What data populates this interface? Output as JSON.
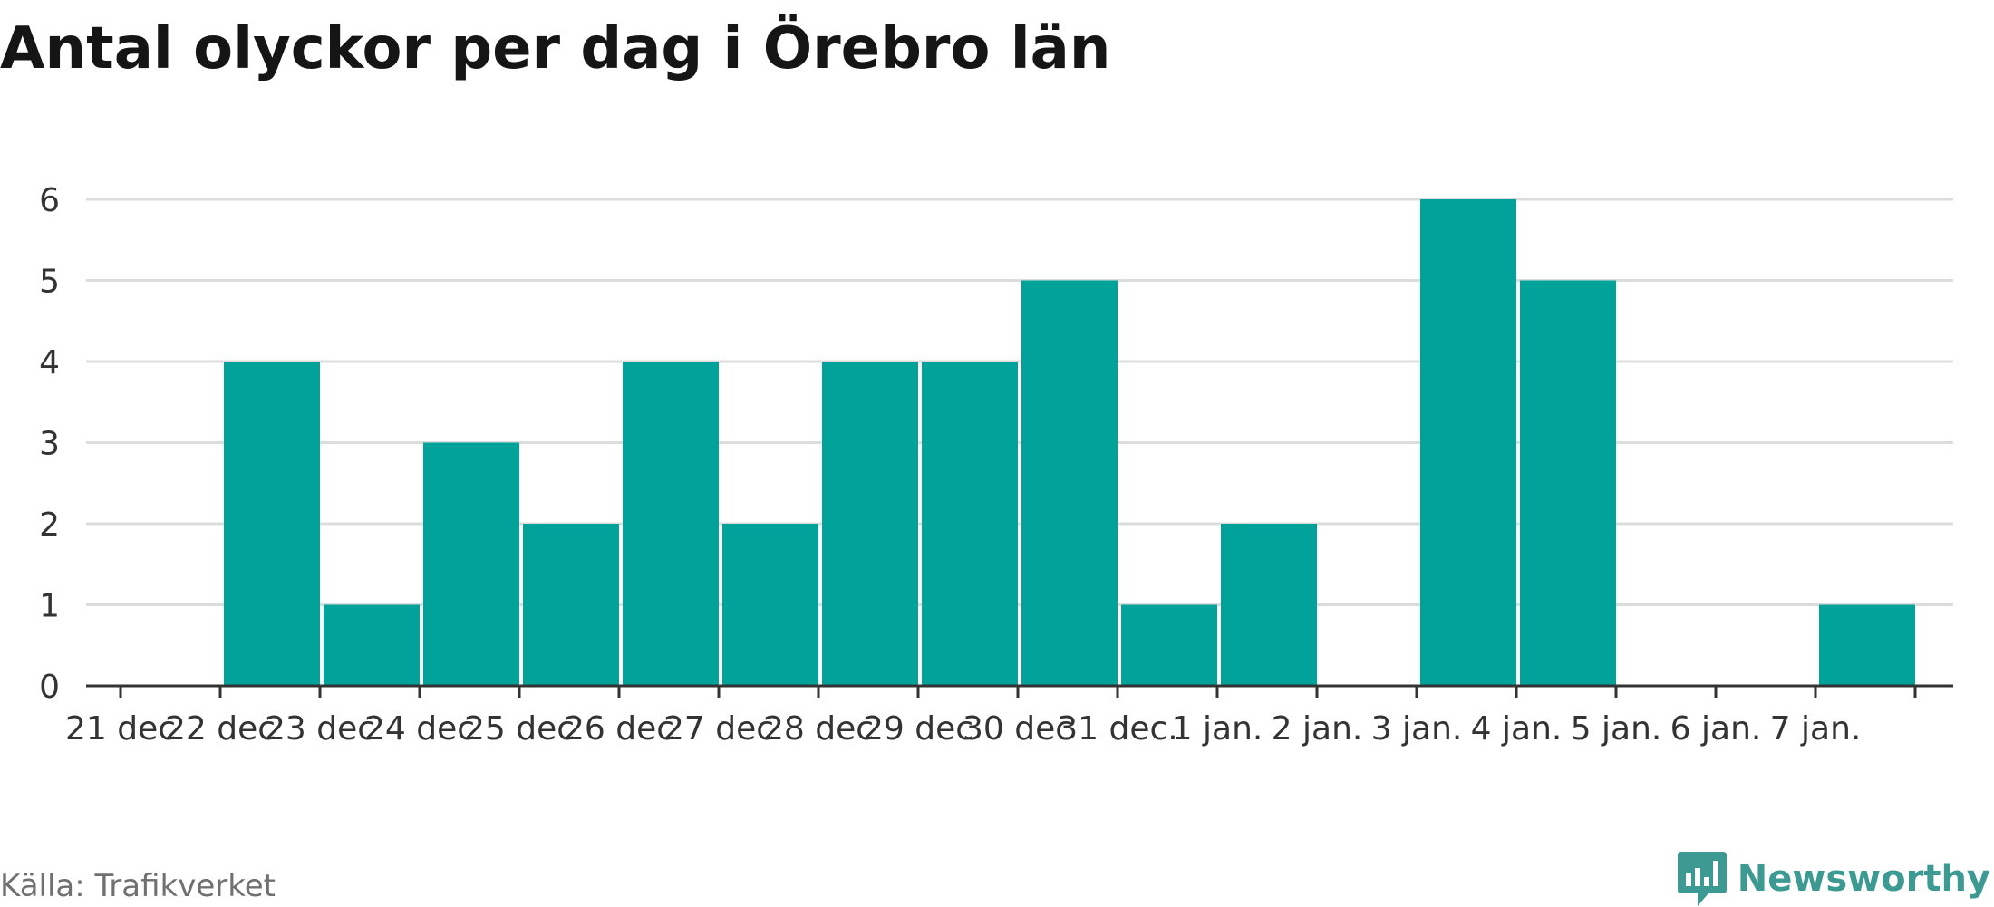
{
  "title": "Antal olyckor per dag i Örebro län",
  "source": "Källa: Trafikverket",
  "brand": {
    "name": "Newsworthy",
    "icon": "newsworthy-logo-icon",
    "color": "#3c9a92"
  },
  "colors": {
    "bar": "#00a29a",
    "gridline": "#dcdcdc",
    "axis": "#333333"
  },
  "chart_data": {
    "type": "bar",
    "title": "Antal olyckor per dag i Örebro län",
    "xlabel": "",
    "ylabel": "",
    "categories": [
      "21 dec.",
      "22 dec.",
      "23 dec.",
      "24 dec.",
      "25 dec.",
      "26 dec.",
      "27 dec.",
      "28 dec.",
      "29 dec.",
      "30 dec.",
      "31 dec.",
      "1 jan.",
      "2 jan.",
      "3 jan.",
      "4 jan.",
      "5 jan.",
      "6 jan.",
      "7 jan."
    ],
    "tick_labels": [
      "21 dec",
      "22 dec",
      "23 dec",
      "24 dec",
      "25 dec",
      "26 dec",
      "27 dec",
      "28 dec",
      "29 dec",
      "30 dec",
      "31 dec.",
      "1 jan.",
      "2 jan.",
      "3 jan.",
      "4 jan.",
      "5 jan.",
      "6 jan.",
      "7 jan."
    ],
    "series": [
      {
        "values": [
          0,
          4,
          1,
          3,
          2,
          4,
          2,
          4,
          4,
          5,
          1,
          2,
          0,
          6,
          5,
          0,
          0,
          1
        ]
      }
    ],
    "ylim": [
      0,
      6
    ],
    "yticks": [
      0,
      1,
      2,
      3,
      4,
      5,
      6
    ],
    "grid": true,
    "legend": "none"
  }
}
